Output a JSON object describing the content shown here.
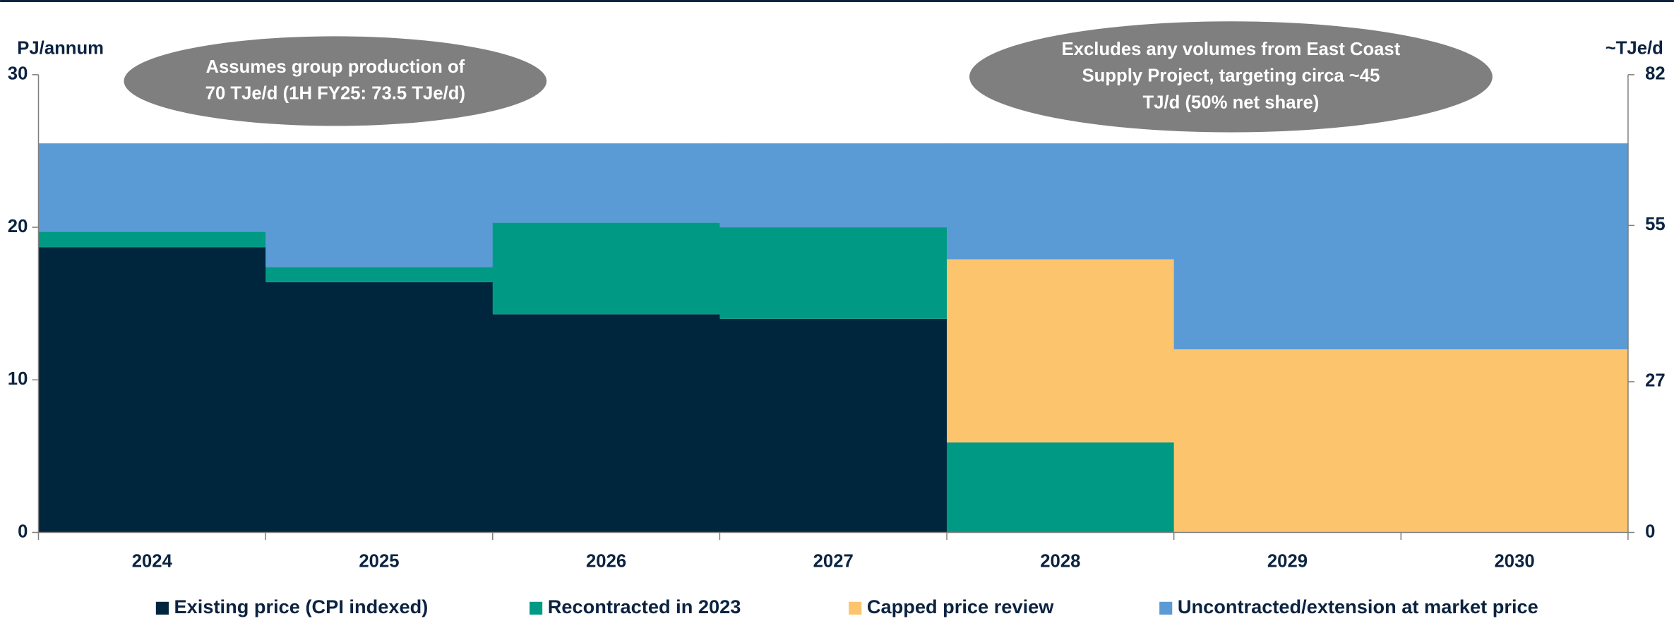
{
  "chart_data": {
    "type": "bar",
    "stacked": true,
    "y_label": "PJ/annum",
    "y2_label": "~TJe/d",
    "categories": [
      "2024",
      "2025",
      "2026",
      "2027",
      "2028",
      "2029",
      "2030"
    ],
    "series": [
      {
        "name": "Existing price (CPI indexed)",
        "color": "#00263e",
        "values": [
          18.7,
          16.4,
          14.3,
          14.0,
          0,
          0,
          0
        ]
      },
      {
        "name": "Recontracted in 2023",
        "color": "#009a84",
        "values": [
          1.0,
          1.0,
          6.0,
          6.0,
          5.9,
          0,
          0
        ]
      },
      {
        "name": "Capped price review",
        "color": "#fdc46e",
        "values": [
          0,
          0,
          0,
          0,
          12.0,
          12.0,
          12.0
        ]
      },
      {
        "name": "Uncontracted/extension at market price",
        "color": "#5b9bd5",
        "values": [
          5.8,
          8.1,
          5.2,
          5.5,
          7.6,
          13.5,
          13.5
        ]
      }
    ],
    "ylim": [
      0,
      30
    ],
    "yticks": [
      0,
      10,
      20,
      30
    ],
    "y2lim": [
      0,
      82
    ],
    "y2ticks": [
      0,
      27,
      55,
      82
    ],
    "annotations": [
      {
        "lines": [
          "Assumes group production of",
          "70 TJe/d (1H FY25: 73.5 TJe/d)"
        ]
      },
      {
        "lines": [
          "Excludes any volumes from East Coast",
          "Supply Project, targeting circa ~45",
          "TJ/d (50% net share)"
        ]
      }
    ],
    "legend": "bottom"
  }
}
